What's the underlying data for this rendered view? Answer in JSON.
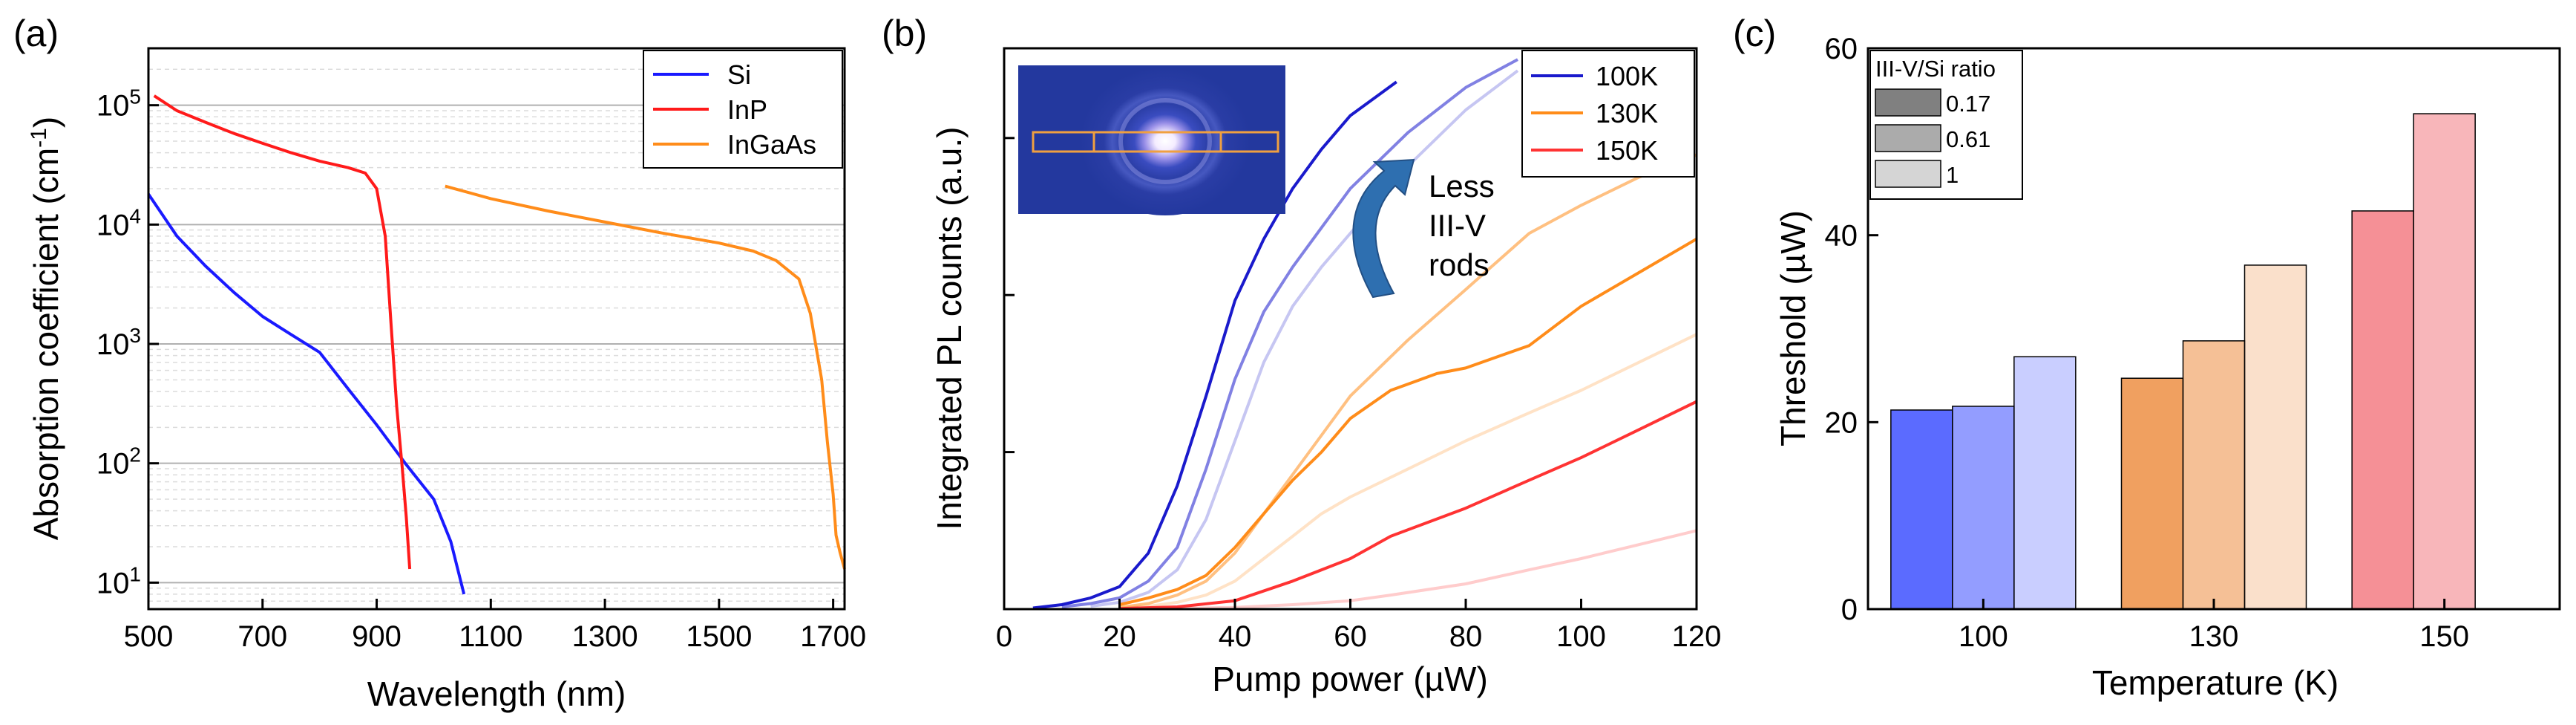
{
  "chart_data": [
    {
      "panel": "(a)",
      "type": "line",
      "xlabel": "Wavelength (nm)",
      "ylabel_main": "Absorption coefficient (cm",
      "ylabel_sup": "-1",
      "ylabel_end": ")",
      "xlim": [
        500,
        1720
      ],
      "ylog": true,
      "ylim": [
        6,
        300000
      ],
      "xticks": [
        500,
        700,
        900,
        1100,
        1300,
        1500,
        1700
      ],
      "xtick_labels": [
        "500",
        "700",
        "900",
        "1100",
        "1300",
        "1500",
        "1700"
      ],
      "yticks": [
        10,
        100,
        1000,
        10000,
        100000
      ],
      "ytick_base": "10",
      "ytick_exps": [
        "1",
        "2",
        "3",
        "4",
        "5"
      ],
      "grid": true,
      "legend_position": "top-right",
      "series": [
        {
          "name": "Si",
          "color": "#1a1aff",
          "x": [
            500,
            550,
            600,
            650,
            700,
            750,
            800,
            850,
            900,
            950,
            1000,
            1030,
            1053
          ],
          "y": [
            18000,
            8000,
            4500,
            2700,
            1700,
            1200,
            850,
            420,
            210,
            100,
            50,
            22,
            8
          ]
        },
        {
          "name": "InP",
          "color": "#ff1a1a",
          "x": [
            510,
            550,
            600,
            650,
            700,
            750,
            800,
            850,
            880,
            900,
            915,
            925,
            935,
            945,
            952,
            958
          ],
          "y": [
            120000,
            90000,
            72000,
            58000,
            48000,
            40000,
            34000,
            30000,
            27000,
            20000,
            8000,
            1500,
            300,
            90,
            35,
            13
          ]
        },
        {
          "name": "InGaAs",
          "color": "#ff8c1a",
          "x": [
            1020,
            1100,
            1200,
            1300,
            1400,
            1500,
            1560,
            1600,
            1640,
            1660,
            1680,
            1690,
            1700,
            1705,
            1712,
            1720
          ],
          "y": [
            21000,
            16500,
            13000,
            10500,
            8500,
            7000,
            6000,
            5000,
            3500,
            1800,
            500,
            150,
            55,
            25,
            18,
            13
          ]
        }
      ]
    },
    {
      "panel": "(b)",
      "type": "line",
      "xlabel": "Pump power (µW)",
      "ylabel": "Integrated PL counts (a.u.)",
      "xlim": [
        0,
        120
      ],
      "ylim": [
        0,
        100
      ],
      "xticks": [
        0,
        20,
        40,
        60,
        80,
        100,
        120
      ],
      "xtick_labels": [
        "0",
        "20",
        "40",
        "60",
        "80",
        "100",
        "120"
      ],
      "yticks": [
        0,
        28,
        56,
        84
      ],
      "legend_position": "top-right",
      "legend": [
        {
          "name": "100K",
          "color": "#1a1acc"
        },
        {
          "name": "130K",
          "color": "#ff8c1a"
        },
        {
          "name": "150K",
          "color": "#ff3333"
        }
      ],
      "annotation_lines": [
        "Less",
        "III-V",
        "rods"
      ],
      "inset": "mode image with three rectangular outlines",
      "series": [
        {
          "name": "100K ratio 0.17",
          "color": "#1a1acc",
          "opacity": 1.0,
          "x": [
            5,
            10,
            15,
            20,
            25,
            30,
            35,
            40,
            45,
            50,
            55,
            60,
            68
          ],
          "y": [
            0.2,
            0.8,
            2,
            4,
            10,
            22,
            38,
            55,
            66,
            75,
            82,
            88,
            94
          ]
        },
        {
          "name": "100K ratio 0.61",
          "color": "#1a1acc",
          "opacity": 0.55,
          "x": [
            10,
            15,
            20,
            25,
            30,
            35,
            40,
            45,
            50,
            55,
            60,
            70,
            80,
            89
          ],
          "y": [
            0.4,
            1,
            2,
            5,
            11,
            25,
            41,
            53,
            61,
            68,
            75,
            85,
            93,
            98
          ]
        },
        {
          "name": "100K ratio 1",
          "color": "#1a1acc",
          "opacity": 0.25,
          "x": [
            15,
            20,
            25,
            30,
            35,
            40,
            45,
            50,
            55,
            60,
            70,
            80,
            89
          ],
          "y": [
            0.5,
            1.2,
            3,
            7,
            16,
            30,
            44,
            54,
            61,
            67,
            79,
            89,
            96
          ]
        },
        {
          "name": "130K ratio 0.17",
          "color": "#ff8c1a",
          "opacity": 1.0,
          "x": [
            20,
            25,
            30,
            35,
            40,
            45,
            50,
            55,
            60,
            67,
            75,
            80,
            91,
            100,
            110,
            120
          ],
          "y": [
            0.8,
            2,
            3.5,
            6,
            11,
            17,
            23,
            28,
            34,
            39,
            42,
            43,
            47,
            54,
            60,
            66
          ]
        },
        {
          "name": "130K ratio 0.61",
          "color": "#ff8c1a",
          "opacity": 0.55,
          "x": [
            20,
            25,
            30,
            35,
            40,
            45,
            50,
            55,
            60,
            70,
            80,
            91,
            100,
            110,
            120
          ],
          "y": [
            0.3,
            1,
            2.5,
            5,
            10,
            17,
            24,
            31,
            38,
            48,
            57,
            67,
            72,
            77,
            81
          ]
        },
        {
          "name": "130K ratio 1",
          "color": "#ff8c1a",
          "opacity": 0.25,
          "x": [
            20,
            25,
            30,
            35,
            40,
            45,
            50,
            55,
            60,
            70,
            80,
            91,
            100,
            110,
            120
          ],
          "y": [
            0.2,
            0.5,
            1.2,
            2.5,
            5,
            9,
            13,
            17,
            20,
            25,
            30,
            35,
            39,
            44,
            49
          ]
        },
        {
          "name": "150K ratio 0.17",
          "color": "#ff3333",
          "opacity": 1.0,
          "x": [
            20,
            30,
            40,
            50,
            60,
            67,
            80,
            91,
            100,
            110,
            120
          ],
          "y": [
            0.1,
            0.4,
            1.5,
            5,
            9,
            13,
            18,
            23,
            27,
            32,
            37
          ]
        },
        {
          "name": "150K ratio 0.61",
          "color": "#ff3333",
          "opacity": 0.25,
          "x": [
            30,
            40,
            50,
            60,
            67,
            80,
            91,
            100,
            110,
            120
          ],
          "y": [
            0.1,
            0.3,
            0.8,
            1.5,
            2.5,
            4.5,
            7,
            9,
            11.5,
            14
          ]
        }
      ]
    },
    {
      "panel": "(c)",
      "type": "bar",
      "xlabel": "Temperature (K)",
      "ylabel": "Threshold (µW)",
      "ylim": [
        0,
        60
      ],
      "yticks": [
        0,
        20,
        40,
        60
      ],
      "ytick_labels": [
        "0",
        "20",
        "40",
        "60"
      ],
      "categories": [
        "100",
        "130",
        "150"
      ],
      "legend_title": "III-V/Si ratio",
      "legend_position": "top-left",
      "series": [
        {
          "name": "0.17",
          "opacity": 1.0,
          "values": [
            21.3,
            24.7,
            42.6
          ]
        },
        {
          "name": "0.61",
          "opacity": 0.66,
          "values": [
            21.7,
            28.7,
            53.0
          ]
        },
        {
          "name": "1",
          "opacity": 0.33,
          "values": [
            27.0,
            36.8,
            null
          ]
        }
      ],
      "category_colors": [
        "#5b6bff",
        "#f0a060",
        "#f59096"
      ],
      "legend_swatch_color": "#808080"
    }
  ]
}
